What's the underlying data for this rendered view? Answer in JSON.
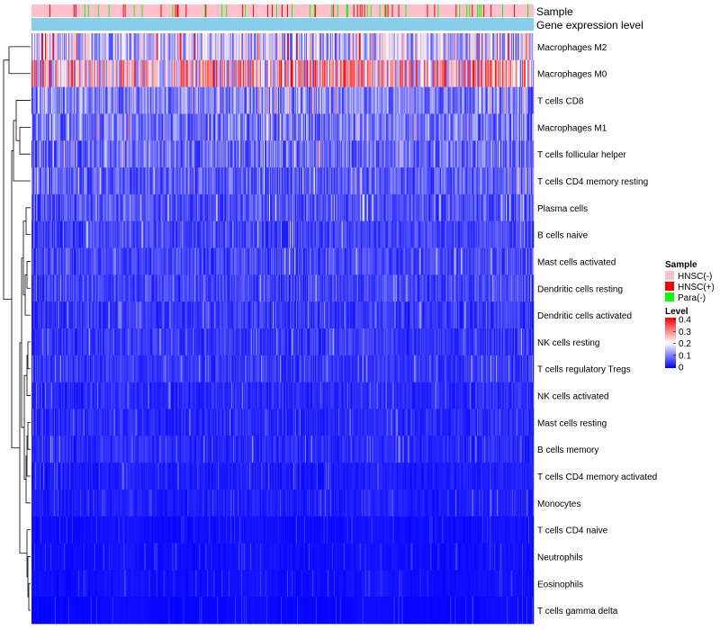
{
  "chart_data": {
    "type": "heatmap",
    "title": "",
    "annotation_rows": [
      "Sample",
      "Gene expression level"
    ],
    "rows": [
      "Macrophages M2",
      "Macrophages M0",
      "T cells CD8",
      "Macrophages M1",
      "T cells follicular helper",
      "T cells CD4 memory resting",
      "Plasma cells",
      "B cells naive",
      "Mast cells activated",
      "Dendritic cells resting",
      "Dendritic cells activated",
      "NK cells resting",
      "T cells regulatory  Tregs",
      "NK cells activated",
      "Mast cells resting",
      "B cells memory",
      "T cells CD4 memory activated",
      "Monocytes",
      "T cells CD4 naive",
      "Neutrophils",
      "Eosinophils",
      "T cells gamma delta"
    ],
    "row_typical_level": [
      0.16,
      0.22,
      0.1,
      0.09,
      0.08,
      0.07,
      0.06,
      0.05,
      0.05,
      0.05,
      0.04,
      0.04,
      0.04,
      0.03,
      0.03,
      0.03,
      0.02,
      0.02,
      0.01,
      0.01,
      0.01,
      0.005
    ],
    "n_samples": 560,
    "sample_legend": {
      "title": "Sample",
      "items": [
        {
          "label": "HNSC(-)",
          "color": "#FFC0CB"
        },
        {
          "label": "HNSC(+)",
          "color": "#FF0000"
        },
        {
          "label": "Para(-)",
          "color": "#00FF00"
        }
      ]
    },
    "level_legend": {
      "title": "Level",
      "ticks": [
        "0.4",
        "0.3",
        "0.2",
        "0.1",
        "0"
      ],
      "range": [
        0,
        0.4
      ],
      "colors": [
        "#0000FF",
        "#FFFFFF",
        "#FF0000"
      ]
    },
    "gene_expression_color": "#87CEEB"
  }
}
